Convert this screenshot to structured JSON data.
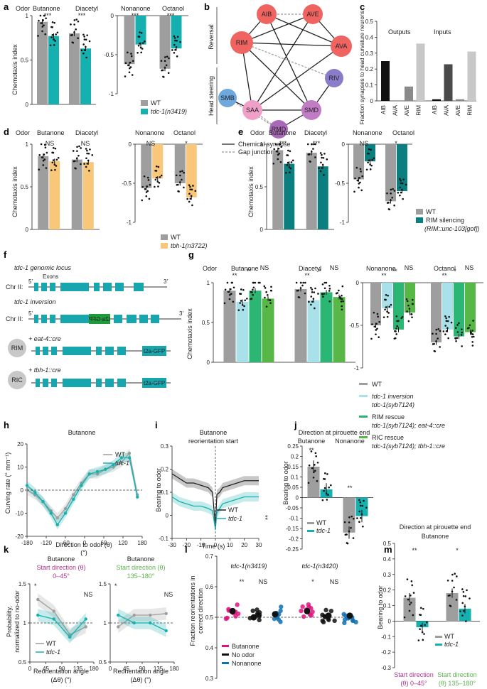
{
  "panel_labels": {
    "a": "a",
    "b": "b",
    "c": "c",
    "d": "d",
    "e": "e",
    "f": "f",
    "g": "g",
    "h": "h",
    "i": "i",
    "j": "j",
    "k": "k",
    "l": "l",
    "m": "m"
  },
  "colors": {
    "wt": "#9e9e9e",
    "tdc1": "#17b0b0",
    "tbh1": "#f8c77a",
    "rim": "#0b7f80",
    "inv": "#a9e1ea",
    "rimrescue": "#2cb673",
    "ricrescue": "#58b847",
    "butanone": "#e0127c",
    "nonanone": "#1170b0",
    "start045": "#b0308e",
    "start135": "#5db14c"
  },
  "common": {
    "odor": "Odor",
    "butanone": "Butanone",
    "diacetyl": "Diacetyl",
    "nonanone": "Nonanone",
    "octanol": "Octanol",
    "ci": "Chemotaxis index",
    "wt": "WT",
    "tdc1": "tdc-1",
    "bearing": "Bearing to odor"
  },
  "a": {
    "sig": [
      "***",
      "***",
      "***",
      "***"
    ],
    "legend_mut": "tdc-1(n3419)"
  },
  "b": {
    "nodes": [
      "AIB",
      "AVE",
      "RIM",
      "AVA",
      "RIV",
      "SMB",
      "SAA",
      "SMD",
      "RMD"
    ],
    "reversal": "Reversal",
    "head_steering": "Head steering",
    "legend_chem": "Chemical synapse",
    "legend_gap": "Gap junction"
  },
  "c": {
    "ylabel": "Fraction synapses to head curvature neurons",
    "outputs": "Outputs",
    "inputs": "Inputs"
  },
  "d": {
    "sig": [
      "NS",
      "NS",
      "NS",
      "*"
    ],
    "legend_mut": "tbh-1(n3722)"
  },
  "e": {
    "sig": [
      "***",
      "***",
      "NS",
      "*"
    ],
    "legend_mut": "RIM silencing",
    "legend_mut2": "(RIM::unc-103[gof])"
  },
  "f": {
    "title1": "tdc-1 genomic locus",
    "exons": "Exons",
    "chr": "Chr II:",
    "five": "5'",
    "three": "3'",
    "title2": "tdc-1 inversion",
    "gfp_rev": "t2a-GFP",
    "gfp": "t2a-GFP",
    "eat4": "+ eat-4::cre",
    "tbh1": "+ tbh-1::cre",
    "rim": "RIM",
    "ric": "RIC"
  },
  "g": {
    "sig": [
      "**",
      "**",
      "NS",
      "**",
      "*",
      "NS",
      "**",
      "**",
      "NS",
      "**",
      "*",
      "NS"
    ],
    "legend": [
      "WT",
      "tdc-1 inversion",
      "tdc-1(syb7124)",
      "RIM rescue",
      "tdc-1(syb7124); eat-4::cre",
      "RIC rescue",
      "tdc-1(syb7124); tbh-1::cre"
    ]
  },
  "h": {
    "title": "Butanone",
    "ylabel": "Curving rate (° mm⁻¹)",
    "xlabel": "Direction to odor (θ)",
    "xunit": "(°)"
  },
  "i": {
    "title1": "Butanone",
    "title2": "reorientation start",
    "xlabel": "Time (s)",
    "sig": "**"
  },
  "j": {
    "title": "Direction at pirouette end",
    "sig": [
      "**",
      "**"
    ]
  },
  "k": {
    "title": "Butanone",
    "sub1": "Start direction (θ)",
    "range1": "0–45°",
    "range2": "135–180°",
    "ylabel1": "Probability,",
    "ylabel2": "normalized to no-odor",
    "xlabel": "Reorientation angle",
    "xlabel2": "(Δθ) (°)",
    "sig": [
      "*",
      "NS",
      "*",
      "NS"
    ]
  },
  "l": {
    "group1": "tdc-1(n3419)",
    "group2": "tdc-1(n3420)",
    "ylabel1": "Fraction reorientations in",
    "ylabel2": "correct direction",
    "sig": [
      "**",
      "NS",
      "*",
      "NS"
    ],
    "legend": [
      "Butanone",
      "No odor",
      "Nonanone"
    ]
  },
  "m": {
    "title1": "Direction at pirouette end",
    "title2": "Butanone",
    "sig": [
      "**",
      "*"
    ],
    "xl1a": "Start direction",
    "xl1b": "(θ) 0–45°",
    "xl2a": "Start direction",
    "xl2b": "(θ) 135–180°"
  },
  "chart_data": [
    {
      "panel": "a",
      "type": "bar",
      "categories": [
        "Butanone",
        "Diacetyl"
      ],
      "series": [
        {
          "name": "WT",
          "values": [
            0.93,
            0.8
          ]
        },
        {
          "name": "tdc-1(n3419)",
          "values": [
            0.77,
            0.63
          ]
        }
      ],
      "ylabel": "Chemotaxis index",
      "ylim": [
        0,
        1
      ],
      "yticks": [
        0,
        0.5,
        1
      ]
    },
    {
      "panel": "a2",
      "type": "bar",
      "categories": [
        "Nonanone",
        "Octanol"
      ],
      "series": [
        {
          "name": "WT",
          "values": [
            -0.62,
            -0.68
          ]
        },
        {
          "name": "tdc-1(n3419)",
          "values": [
            -0.37,
            -0.42
          ]
        }
      ],
      "ylim": [
        -1,
        0
      ],
      "yticks": [
        0,
        -0.5,
        -1
      ]
    },
    {
      "panel": "c",
      "type": "bar",
      "categories": [
        "AIB",
        "AVA",
        "AVE",
        "RIM",
        "AIB",
        "AVA",
        "AVE",
        "RIM"
      ],
      "values": [
        0.25,
        0.0,
        0.09,
        0.36,
        0.01,
        0.23,
        0.01,
        0.31
      ],
      "groups": [
        "Outputs",
        "Inputs"
      ],
      "ylim": [
        0,
        0.5
      ],
      "yticks": [
        0,
        0.1,
        0.2,
        0.3,
        0.4,
        0.5
      ]
    },
    {
      "panel": "d",
      "type": "bar",
      "categories": [
        "Butanone",
        "Diacetyl"
      ],
      "series": [
        {
          "name": "WT",
          "values": [
            0.86,
            0.82
          ]
        },
        {
          "name": "tbh-1(n3722)",
          "values": [
            0.8,
            0.79
          ]
        }
      ],
      "ylim": [
        0,
        1
      ],
      "yticks": [
        0,
        0.5,
        1
      ]
    },
    {
      "panel": "d2",
      "type": "bar",
      "categories": [
        "Nonanone",
        "Octanol"
      ],
      "series": [
        {
          "name": "WT",
          "values": [
            -0.56,
            -0.5
          ]
        },
        {
          "name": "tbh-1(n3722)",
          "values": [
            -0.44,
            -0.68
          ]
        }
      ],
      "ylim": [
        -1,
        0
      ],
      "yticks": [
        0,
        -0.5,
        -1
      ]
    },
    {
      "panel": "e",
      "type": "bar",
      "categories": [
        "Butanone",
        "Diacetyl"
      ],
      "series": [
        {
          "name": "WT",
          "values": [
            0.93,
            0.9
          ]
        },
        {
          "name": "RIM silencing",
          "values": [
            0.77,
            0.74
          ]
        }
      ],
      "ylim": [
        0,
        1
      ],
      "yticks": [
        0,
        0.5,
        1
      ]
    },
    {
      "panel": "e2",
      "type": "bar",
      "categories": [
        "Nonanone",
        "Octanol"
      ],
      "series": [
        {
          "name": "WT",
          "values": [
            -0.45,
            -0.73
          ]
        },
        {
          "name": "RIM silencing",
          "values": [
            -0.22,
            -0.6
          ]
        }
      ],
      "ylim": [
        -1,
        0
      ],
      "yticks": [
        0,
        -0.5,
        -1
      ]
    },
    {
      "panel": "g",
      "type": "bar",
      "categories": [
        "Butanone",
        "Diacetyl"
      ],
      "series": [
        {
          "name": "WT",
          "values": [
            0.9,
            0.92
          ]
        },
        {
          "name": "tdc-1 inversion",
          "values": [
            0.76,
            0.78
          ]
        },
        {
          "name": "RIM rescue",
          "values": [
            0.9,
            0.88
          ]
        },
        {
          "name": "RIC rescue",
          "values": [
            0.8,
            0.82
          ]
        }
      ],
      "ylim": [
        0,
        1
      ],
      "yticks": [
        0,
        0.5,
        1
      ]
    },
    {
      "panel": "g2",
      "type": "bar",
      "categories": [
        "Nonanone",
        "Octanol"
      ],
      "series": [
        {
          "name": "WT",
          "values": [
            -0.5,
            -0.7
          ]
        },
        {
          "name": "tdc-1 inversion",
          "values": [
            -0.3,
            -0.55
          ]
        },
        {
          "name": "RIM rescue",
          "values": [
            -0.55,
            -0.63
          ]
        },
        {
          "name": "RIC rescue",
          "values": [
            -0.35,
            -0.58
          ]
        }
      ],
      "ylim": [
        -1,
        0
      ],
      "yticks": [
        0,
        -0.5,
        -1
      ]
    },
    {
      "panel": "h",
      "type": "line",
      "x": [
        -180,
        -155,
        -130,
        -105,
        -85,
        -60,
        -35,
        -10,
        15,
        40,
        65,
        90,
        115,
        140,
        165
      ],
      "series": [
        {
          "name": "WT",
          "values": [
            0,
            -2,
            -5,
            -9,
            -12,
            -8,
            -2,
            3,
            7,
            7,
            9,
            10,
            12,
            16,
            -2
          ]
        },
        {
          "name": "tdc-1",
          "values": [
            2,
            -1,
            -5,
            -10,
            -15,
            -10,
            -4,
            2,
            7,
            8,
            9,
            11,
            14,
            14,
            -3
          ]
        }
      ],
      "xlabel": "Direction to odor (θ)",
      "ylabel": "Curving rate (° mm⁻¹)",
      "xlim": [
        -180,
        180
      ],
      "ylim": [
        -20,
        20
      ],
      "xticks": [
        -180,
        -120,
        -60,
        0,
        60,
        120,
        180
      ],
      "yticks": [
        -20,
        -10,
        0,
        10,
        20
      ]
    },
    {
      "panel": "i",
      "type": "line",
      "x": [
        -30,
        -25,
        -20,
        -15,
        -10,
        -5,
        -2,
        0,
        1,
        3,
        5,
        10,
        15,
        20,
        25,
        30
      ],
      "series": [
        {
          "name": "WT",
          "values": [
            0.18,
            0.16,
            0.14,
            0.14,
            0.13,
            0.12,
            0.1,
            -0.05,
            0.09,
            0.1,
            0.12,
            0.13,
            0.14,
            0.15,
            0.15,
            0.15
          ]
        },
        {
          "name": "tdc-1",
          "values": [
            0.08,
            0.06,
            0.05,
            0.04,
            0.04,
            0.03,
            0.02,
            -0.06,
            0.01,
            0.03,
            0.05,
            0.06,
            0.07,
            0.08,
            0.08,
            0.08
          ]
        }
      ],
      "xlabel": "Time (s)",
      "ylabel": "Bearing to odor",
      "xlim": [
        -30,
        30
      ],
      "ylim": [
        -0.1,
        0.3
      ],
      "xticks": [
        -30,
        -20,
        -10,
        0,
        10,
        20,
        30
      ],
      "yticks": [
        -0.1,
        0,
        0.1,
        0.2,
        0.3
      ]
    },
    {
      "panel": "j",
      "type": "bar",
      "categories": [
        "Butanone",
        "Nonanone"
      ],
      "series": [
        {
          "name": "WT",
          "values": [
            0.15,
            -0.17
          ]
        },
        {
          "name": "tdc-1",
          "values": [
            0.04,
            -0.09
          ]
        }
      ],
      "ylim": [
        -0.25,
        0.25
      ],
      "yticks": [
        -0.25,
        -0.2,
        -0.15,
        -0.1,
        -0.05,
        0,
        0.05,
        0.1,
        0.15,
        0.2,
        0.25
      ]
    },
    {
      "panel": "k1",
      "type": "line",
      "x": [
        22.5,
        67.5,
        112.5,
        157.5
      ],
      "series": [
        {
          "name": "WT",
          "values": [
            1.3,
            1.15,
            0.85,
            0.95
          ]
        },
        {
          "name": "tdc-1",
          "values": [
            1.1,
            1.05,
            0.82,
            1.05
          ]
        }
      ],
      "ylim": [
        0.5,
        1.5
      ],
      "xticks": [
        0,
        45,
        90,
        135,
        180
      ],
      "yticks": [
        0.5,
        1,
        1.5
      ]
    },
    {
      "panel": "k2",
      "type": "line",
      "x": [
        22.5,
        67.5,
        112.5,
        157.5
      ],
      "series": [
        {
          "name": "WT",
          "values": [
            0.95,
            1.1,
            1.1,
            1.12
          ]
        },
        {
          "name": "tdc-1",
          "values": [
            1.1,
            1.0,
            1.0,
            0.9
          ]
        }
      ],
      "ylim": [
        0.5,
        1.5
      ],
      "xticks": [
        0,
        45,
        90,
        135,
        180
      ],
      "yticks": [
        0.5,
        1,
        1.5
      ]
    },
    {
      "panel": "l",
      "type": "scatter",
      "categories": [
        "Butanone",
        "No odor",
        "Nonanone",
        "Butanone",
        "No odor",
        "Nonanone"
      ],
      "values": [
        0.52,
        0.5,
        0.51,
        0.52,
        0.505,
        0.505
      ],
      "ylim": [
        0.3,
        0.7
      ],
      "yticks": [
        0.3,
        0.4,
        0.5,
        0.6,
        0.7
      ]
    },
    {
      "panel": "m",
      "type": "bar",
      "categories": [
        "Start direction (θ) 0–45°",
        "Start direction (θ) 135–180°"
      ],
      "series": [
        {
          "name": "WT",
          "values": [
            0.15,
            0.18
          ]
        },
        {
          "name": "tdc-1",
          "values": [
            -0.04,
            0.08
          ]
        }
      ],
      "ylim": [
        -0.3,
        0.5
      ],
      "yticks": [
        -0.3,
        -0.2,
        -0.1,
        0,
        0.1,
        0.2,
        0.3,
        0.4,
        0.5
      ]
    }
  ]
}
